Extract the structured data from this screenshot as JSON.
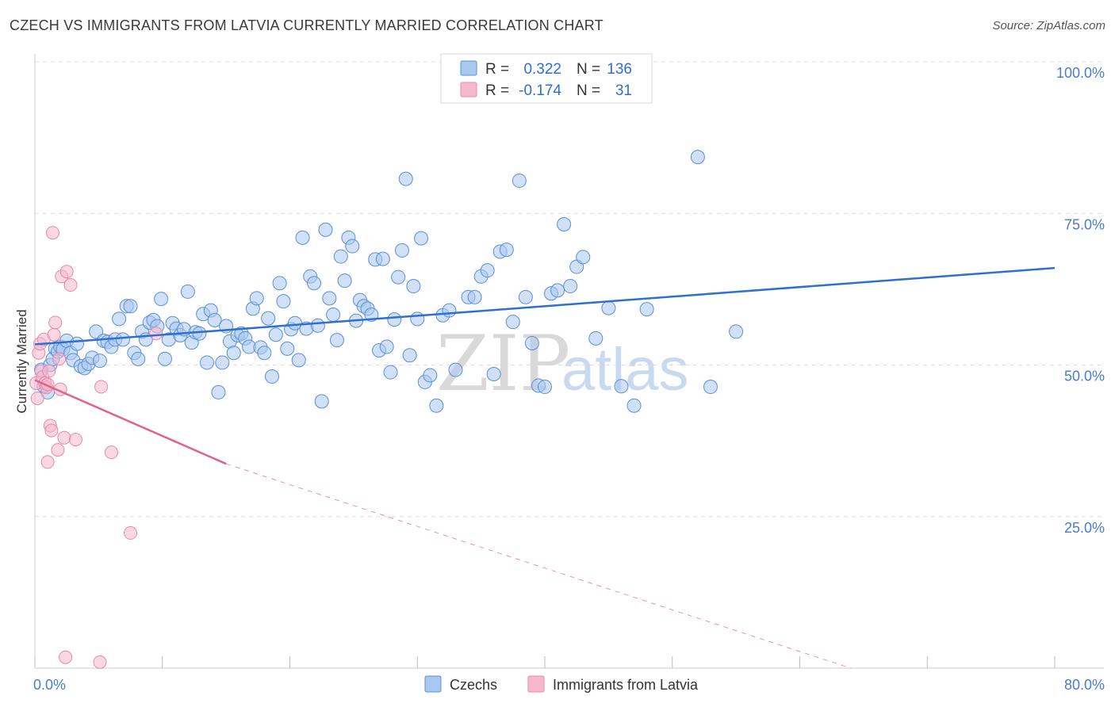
{
  "header": {
    "title": "CZECH VS IMMIGRANTS FROM LATVIA CURRENTLY MARRIED CORRELATION CHART",
    "source": "Source: ZipAtlas.com"
  },
  "legend_top": {
    "rows": [
      {
        "r_label": "R =",
        "r_value": "0.322",
        "n_label": "N =",
        "n_value": "136",
        "color": "#a9c8f0"
      },
      {
        "r_label": "R =",
        "r_value": "-0.174",
        "n_label": "N =",
        "n_value": "31",
        "color": "#f5b8cc"
      }
    ]
  },
  "watermark": {
    "zip": "ZIP",
    "atlas": "atlas"
  },
  "colors": {
    "blue_fill": "#a9c8f0",
    "blue_stroke": "#5b8fd6",
    "blue_line": "#2f6fd0",
    "pink_fill": "#f5b8cc",
    "pink_stroke": "#e58aa8",
    "pink_line": "#e0628e",
    "grid": "#dddddd",
    "tick_text": "#4a7cc9"
  },
  "chart_data": {
    "type": "scatter",
    "title": "CZECH VS IMMIGRANTS FROM LATVIA CURRENTLY MARRIED CORRELATION CHART",
    "xlabel": "",
    "ylabel": "Currently Married",
    "xlim": [
      0,
      80
    ],
    "ylim": [
      0,
      100
    ],
    "x_tick_labels": [
      "0.0%",
      "80.0%"
    ],
    "y_ticks": [
      25,
      50,
      75,
      100
    ],
    "y_tick_labels": [
      "25.0%",
      "50.0%",
      "75.0%",
      "100.0%"
    ],
    "grid": true,
    "legend_position": "bottom",
    "series": [
      {
        "name": "Czechs",
        "color": "#a9c8f0",
        "trend": {
          "x": [
            0,
            80
          ],
          "y": [
            53.4,
            66.0
          ],
          "style": "solid"
        },
        "points": [
          [
            0.5,
            49.2
          ],
          [
            0.7,
            46.5
          ],
          [
            1.0,
            45.5
          ],
          [
            1.2,
            50.0
          ],
          [
            1.4,
            51.0
          ],
          [
            1.6,
            52.7
          ],
          [
            1.8,
            52.2
          ],
          [
            2.0,
            53.0
          ],
          [
            2.2,
            52.6
          ],
          [
            2.5,
            54.0
          ],
          [
            2.8,
            52.0
          ],
          [
            3.0,
            50.8
          ],
          [
            3.3,
            53.5
          ],
          [
            3.6,
            49.8
          ],
          [
            3.9,
            49.5
          ],
          [
            4.2,
            50.2
          ],
          [
            4.5,
            51.2
          ],
          [
            4.8,
            55.5
          ],
          [
            5.1,
            50.7
          ],
          [
            5.4,
            54.0
          ],
          [
            5.7,
            53.8
          ],
          [
            6.0,
            53.0
          ],
          [
            6.3,
            54.2
          ],
          [
            6.6,
            57.6
          ],
          [
            6.9,
            54.2
          ],
          [
            7.2,
            59.7
          ],
          [
            7.5,
            59.7
          ],
          [
            7.8,
            52.0
          ],
          [
            8.1,
            51.0
          ],
          [
            8.4,
            55.5
          ],
          [
            8.7,
            54.2
          ],
          [
            9.0,
            57.0
          ],
          [
            9.3,
            57.4
          ],
          [
            9.6,
            56.4
          ],
          [
            9.9,
            60.9
          ],
          [
            10.2,
            51.0
          ],
          [
            10.5,
            54.2
          ],
          [
            10.8,
            56.9
          ],
          [
            11.1,
            56.0
          ],
          [
            11.4,
            54.9
          ],
          [
            11.7,
            55.9
          ],
          [
            12.0,
            62.1
          ],
          [
            12.3,
            53.7
          ],
          [
            12.6,
            55.4
          ],
          [
            12.9,
            55.2
          ],
          [
            13.2,
            58.4
          ],
          [
            13.5,
            50.4
          ],
          [
            13.8,
            59.0
          ],
          [
            14.1,
            57.4
          ],
          [
            14.4,
            45.5
          ],
          [
            14.7,
            50.4
          ],
          [
            15.0,
            56.4
          ],
          [
            15.3,
            53.9
          ],
          [
            15.6,
            52.0
          ],
          [
            15.9,
            54.9
          ],
          [
            16.2,
            55.2
          ],
          [
            16.5,
            54.4
          ],
          [
            16.8,
            53.0
          ],
          [
            17.1,
            59.3
          ],
          [
            17.4,
            61.0
          ],
          [
            17.7,
            52.9
          ],
          [
            18.0,
            52.0
          ],
          [
            18.3,
            57.7
          ],
          [
            18.6,
            48.1
          ],
          [
            18.9,
            55.0
          ],
          [
            19.2,
            63.5
          ],
          [
            19.5,
            60.5
          ],
          [
            19.8,
            52.7
          ],
          [
            20.1,
            55.9
          ],
          [
            20.4,
            56.9
          ],
          [
            20.7,
            50.8
          ],
          [
            21.0,
            71.0
          ],
          [
            21.3,
            56.0
          ],
          [
            21.6,
            64.6
          ],
          [
            21.9,
            63.5
          ],
          [
            22.2,
            56.5
          ],
          [
            22.5,
            44.0
          ],
          [
            22.8,
            72.3
          ],
          [
            23.1,
            61.0
          ],
          [
            23.4,
            58.3
          ],
          [
            23.7,
            54.1
          ],
          [
            24.0,
            67.9
          ],
          [
            24.3,
            63.9
          ],
          [
            24.6,
            71.0
          ],
          [
            24.9,
            69.6
          ],
          [
            25.2,
            57.3
          ],
          [
            25.5,
            60.7
          ],
          [
            25.8,
            59.7
          ],
          [
            26.1,
            59.3
          ],
          [
            26.4,
            58.3
          ],
          [
            26.7,
            67.4
          ],
          [
            27.0,
            52.4
          ],
          [
            27.3,
            67.5
          ],
          [
            27.6,
            53.0
          ],
          [
            27.9,
            48.8
          ],
          [
            28.2,
            57.5
          ],
          [
            28.5,
            64.5
          ],
          [
            28.8,
            68.9
          ],
          [
            29.1,
            80.7
          ],
          [
            29.4,
            51.6
          ],
          [
            29.7,
            63.0
          ],
          [
            30.0,
            57.6
          ],
          [
            30.3,
            70.9
          ],
          [
            30.6,
            47.2
          ],
          [
            31.0,
            48.3
          ],
          [
            31.5,
            43.3
          ],
          [
            32.0,
            58.2
          ],
          [
            32.5,
            59.0
          ],
          [
            33.0,
            49.2
          ],
          [
            34.0,
            61.2
          ],
          [
            34.5,
            61.2
          ],
          [
            35.0,
            64.6
          ],
          [
            35.5,
            65.6
          ],
          [
            36.0,
            48.5
          ],
          [
            36.5,
            68.7
          ],
          [
            37.0,
            69.0
          ],
          [
            37.5,
            57.1
          ],
          [
            38.0,
            80.4
          ],
          [
            38.5,
            61.2
          ],
          [
            39.0,
            53.6
          ],
          [
            39.5,
            46.6
          ],
          [
            40.0,
            46.4
          ],
          [
            40.5,
            61.8
          ],
          [
            41.0,
            62.3
          ],
          [
            41.5,
            73.2
          ],
          [
            42.0,
            63.0
          ],
          [
            42.5,
            66.2
          ],
          [
            43.0,
            67.8
          ],
          [
            44.0,
            54.4
          ],
          [
            45.0,
            59.4
          ],
          [
            46.0,
            46.5
          ],
          [
            47.0,
            43.3
          ],
          [
            48.0,
            59.2
          ],
          [
            52.0,
            84.3
          ],
          [
            53.0,
            46.4
          ],
          [
            55.0,
            55.5
          ]
        ]
      },
      {
        "name": "Immigrants from Latvia",
        "color": "#f5b8cc",
        "trend": {
          "x": [
            0,
            15,
            64
          ],
          "y": [
            47.5,
            33.7,
            0
          ],
          "style": "solid-then-dashed"
        },
        "points": [
          [
            0.1,
            47.0
          ],
          [
            0.2,
            44.5
          ],
          [
            0.3,
            52.0
          ],
          [
            0.4,
            53.5
          ],
          [
            0.5,
            49.0
          ],
          [
            0.6,
            48.0
          ],
          [
            0.7,
            54.2
          ],
          [
            0.8,
            47.0
          ],
          [
            0.9,
            46.3
          ],
          [
            1.0,
            46.8
          ],
          [
            1.1,
            49.0
          ],
          [
            1.2,
            40.0
          ],
          [
            1.3,
            39.2
          ],
          [
            1.4,
            71.8
          ],
          [
            1.5,
            55.0
          ],
          [
            1.6,
            57.0
          ],
          [
            1.8,
            36.0
          ],
          [
            1.9,
            51.0
          ],
          [
            2.0,
            46.0
          ],
          [
            2.1,
            64.6
          ],
          [
            2.3,
            38.0
          ],
          [
            2.5,
            65.4
          ],
          [
            2.8,
            63.2
          ],
          [
            3.2,
            37.7
          ],
          [
            5.2,
            46.4
          ],
          [
            6.0,
            35.6
          ],
          [
            7.5,
            22.3
          ],
          [
            9.5,
            55.2
          ],
          [
            2.4,
            1.8
          ],
          [
            5.1,
            1.0
          ],
          [
            1.0,
            34.0
          ]
        ]
      }
    ]
  }
}
